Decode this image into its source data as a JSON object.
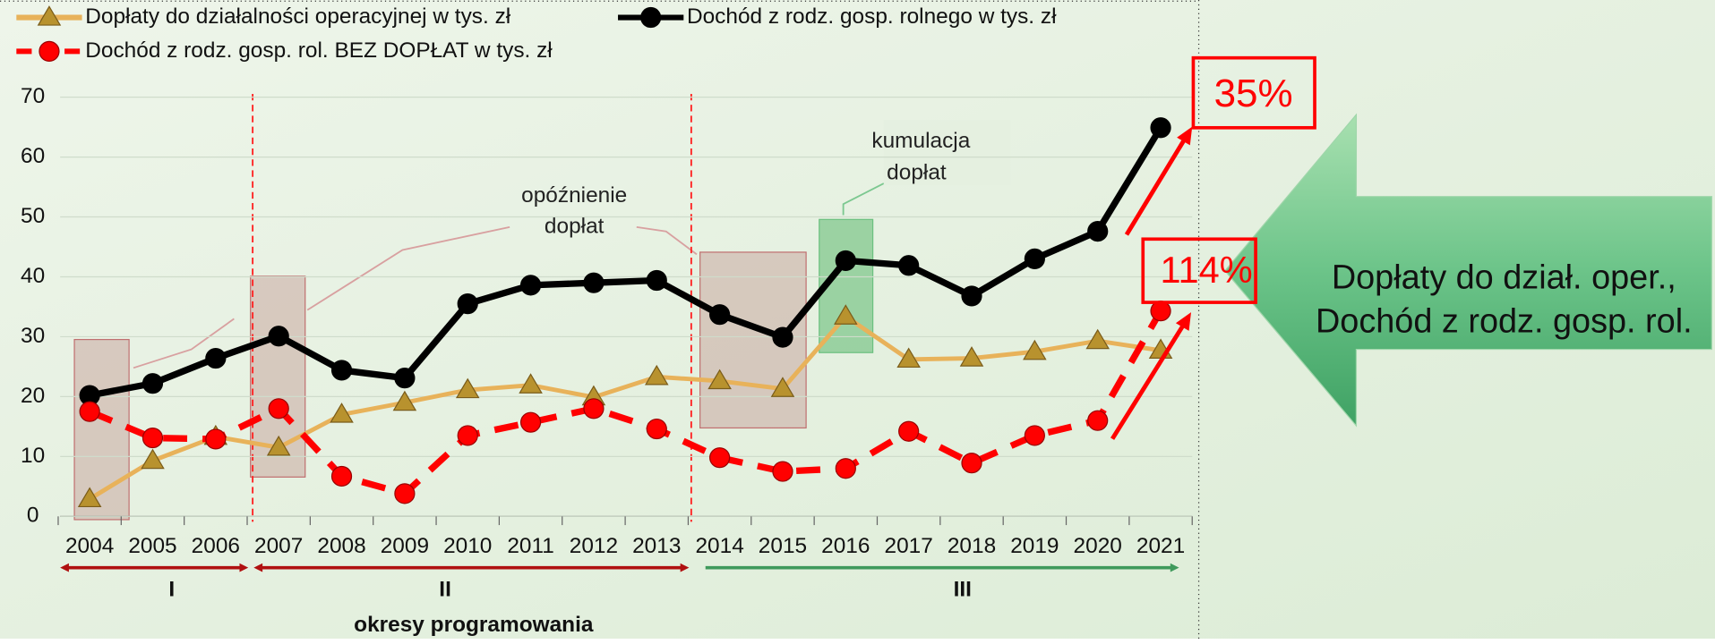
{
  "chart_data": {
    "type": "line",
    "categories": [
      "2004",
      "2005",
      "2006",
      "2007",
      "2008",
      "2009",
      "2010",
      "2011",
      "2012",
      "2013",
      "2014",
      "2015",
      "2016",
      "2017",
      "2018",
      "2019",
      "2020",
      "2021"
    ],
    "series": [
      {
        "name": "Dopłaty do działalności operacyjnej w tys. zł",
        "color": "#e8b25a",
        "marker": "triangle",
        "values": [
          2.9,
          9.3,
          13.3,
          11.5,
          17,
          19,
          21.1,
          21.9,
          19.9,
          23.3,
          22.6,
          21.3,
          33.4,
          26.2,
          26.4,
          27.5,
          29.3,
          27.7
        ]
      },
      {
        "name": "Dochód z rodz. gosp. rolnego w tys. zł",
        "color": "#000000",
        "marker": "circle",
        "values": [
          20.2,
          22.2,
          26.4,
          30.1,
          24.4,
          23.1,
          35.5,
          38.6,
          39,
          39.4,
          33.7,
          29.9,
          42.7,
          41.9,
          36.8,
          43,
          47.6,
          64.9
        ]
      },
      {
        "name": "Dochód z rodz. gosp. rol. BEZ DOPŁAT w tys. zł",
        "color": "#ff0000",
        "marker": "circle",
        "dashed": true,
        "values": [
          17.5,
          13.1,
          12.9,
          18,
          6.7,
          3.8,
          13.5,
          15.7,
          18,
          14.6,
          9.8,
          7.5,
          8,
          14.2,
          8.9,
          13.5,
          16,
          34.3
        ]
      }
    ],
    "ylim": [
      0,
      70
    ],
    "yticks": [
      0,
      10,
      20,
      30,
      40,
      50,
      60,
      70
    ],
    "annotations": {
      "delay": [
        "opóźnienie",
        "dopłat"
      ],
      "accumulation": [
        "kumulacja",
        "dopłat"
      ],
      "change_income": "35%",
      "change_without": "114%",
      "callout": [
        "Dopłaty do dział. oper.,",
        "Dochód z rodz. gosp. rol."
      ]
    },
    "periods": {
      "labels": [
        "I",
        "II",
        "III"
      ],
      "title": "okresy programowania"
    }
  }
}
